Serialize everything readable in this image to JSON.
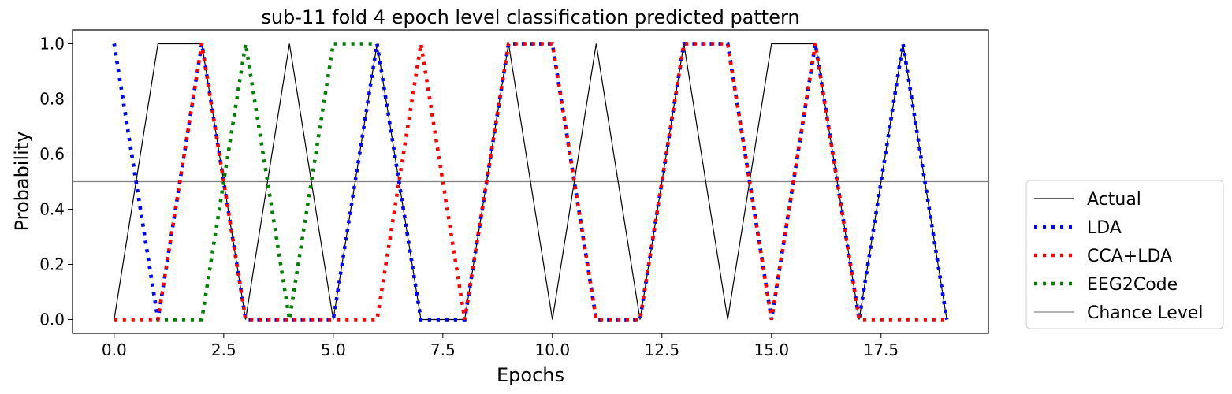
{
  "chart_data": {
    "type": "line",
    "title": "sub-11 fold 4 epoch level classification predicted pattern",
    "xlabel": "Epochs",
    "ylabel": "Probability",
    "xlim": [
      -0.95,
      19.95
    ],
    "ylim": [
      -0.05,
      1.05
    ],
    "xticks": [
      0.0,
      2.5,
      5.0,
      7.5,
      10.0,
      12.5,
      15.0,
      17.5
    ],
    "xtick_labels": [
      "0.0",
      "2.5",
      "5.0",
      "7.5",
      "10.0",
      "12.5",
      "15.0",
      "17.5"
    ],
    "yticks": [
      0.0,
      0.2,
      0.4,
      0.6,
      0.8,
      1.0
    ],
    "ytick_labels": [
      "0.0",
      "0.2",
      "0.4",
      "0.6",
      "0.8",
      "1.0"
    ],
    "grid": false,
    "legend_position": "outside-right",
    "x": [
      0,
      1,
      2,
      3,
      4,
      5,
      6,
      7,
      8,
      9,
      10,
      11,
      12,
      13,
      14,
      15,
      16,
      17,
      18,
      19
    ],
    "series": [
      {
        "name": "Actual",
        "style": "solid",
        "color": "#000000",
        "values": [
          0,
          1,
          1,
          0,
          1,
          0,
          1,
          0,
          0,
          1,
          0,
          1,
          0,
          1,
          0,
          1,
          1,
          0,
          1,
          0
        ]
      },
      {
        "name": "LDA",
        "style": "dotted",
        "color": "#0000ff",
        "values": [
          1,
          0,
          1,
          0,
          0,
          0,
          1,
          0,
          0,
          1,
          1,
          0,
          0,
          1,
          1,
          0,
          1,
          0,
          1,
          0
        ]
      },
      {
        "name": "CCA+LDA",
        "style": "dotted",
        "color": "#ff0000",
        "values": [
          0,
          0,
          1,
          0,
          0,
          0,
          0,
          1,
          0,
          1,
          1,
          0,
          0,
          1,
          1,
          0,
          1,
          0,
          0,
          0
        ]
      },
      {
        "name": "EEG2Code",
        "style": "dotted",
        "color": "#008000",
        "values": [
          1,
          0,
          0,
          1,
          0,
          1,
          1,
          0,
          0,
          1,
          1,
          0,
          0,
          1,
          1,
          0,
          1,
          0,
          1,
          0
        ]
      }
    ],
    "chance_level": {
      "name": "Chance Level",
      "value": 0.5,
      "color": "#808080"
    }
  }
}
